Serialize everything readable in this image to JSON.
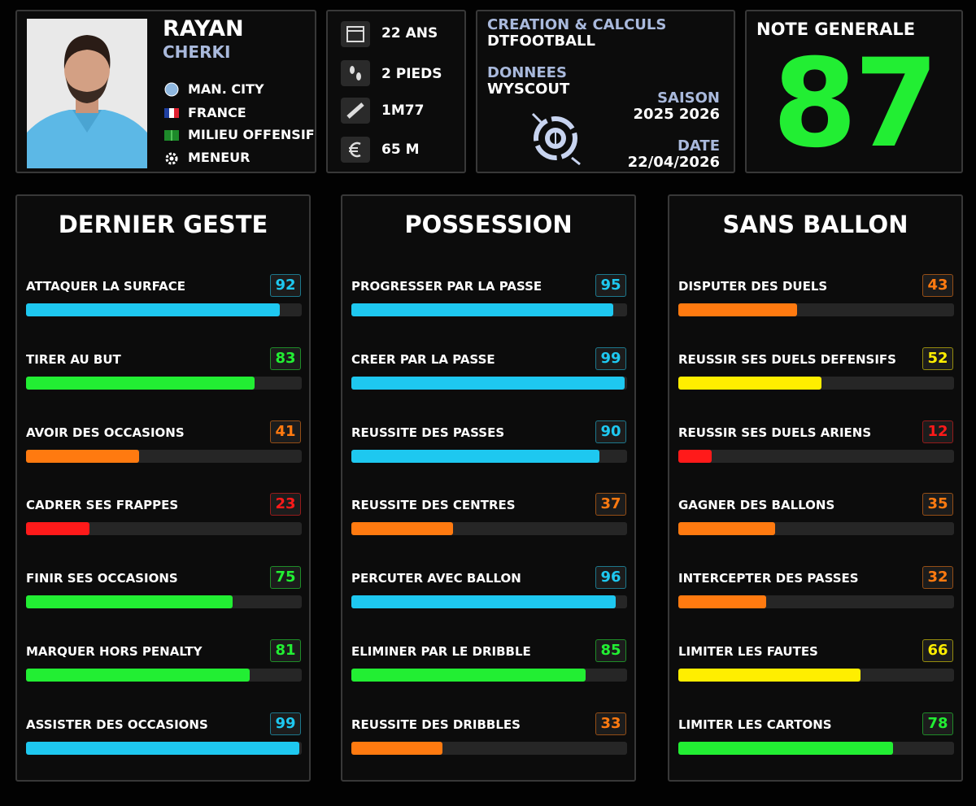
{
  "player": {
    "first_name": "RAYAN",
    "last_name": "CHERKI",
    "club": "MAN. CITY",
    "nation": "FRANCE",
    "position": "MILIEU OFFENSIF",
    "role": "MENEUR"
  },
  "profile": {
    "age": "22 ANS",
    "feet": "2 PIEDS",
    "height": "1M77",
    "value": "65 M"
  },
  "credits": {
    "creation_label": "CREATION & CALCULS",
    "creation": "DTFOOTBALL",
    "data_label": "DONNEES",
    "data_source": "WYSCOUT",
    "season_label": "SAISON",
    "season": "2025 2026",
    "date_label": "DATE",
    "date": "22/04/2026"
  },
  "overall": {
    "label": "NOTE GENERALE",
    "value": 87,
    "color": "#22ee33"
  },
  "panels": [
    {
      "title": "DERNIER GESTE",
      "stats": [
        {
          "label": "ATTAQUER LA SURFACE",
          "value": 92,
          "color": "#1ec8f0"
        },
        {
          "label": "TIRER AU BUT",
          "value": 83,
          "color": "#22ee33"
        },
        {
          "label": "AVOIR DES OCCASIONS",
          "value": 41,
          "color": "#ff7a10"
        },
        {
          "label": "CADRER SES FRAPPES",
          "value": 23,
          "color": "#ff1a1a"
        },
        {
          "label": "FINIR SES OCCASIONS",
          "value": 75,
          "color": "#22ee33"
        },
        {
          "label": "MARQUER HORS PENALTY",
          "value": 81,
          "color": "#22ee33"
        },
        {
          "label": "ASSISTER DES OCCASIONS",
          "value": 99,
          "color": "#1ec8f0"
        }
      ]
    },
    {
      "title": "POSSESSION",
      "stats": [
        {
          "label": "PROGRESSER PAR LA PASSE",
          "value": 95,
          "color": "#1ec8f0"
        },
        {
          "label": "CREER PAR LA PASSE",
          "value": 99,
          "color": "#1ec8f0"
        },
        {
          "label": "REUSSITE DES PASSES",
          "value": 90,
          "color": "#1ec8f0"
        },
        {
          "label": "REUSSITE DES CENTRES",
          "value": 37,
          "color": "#ff7a10"
        },
        {
          "label": "PERCUTER AVEC BALLON",
          "value": 96,
          "color": "#1ec8f0"
        },
        {
          "label": "ELIMINER PAR LE DRIBBLE",
          "value": 85,
          "color": "#22ee33"
        },
        {
          "label": "REUSSITE DES DRIBBLES",
          "value": 33,
          "color": "#ff7a10"
        }
      ]
    },
    {
      "title": "SANS BALLON",
      "stats": [
        {
          "label": "DISPUTER DES DUELS",
          "value": 43,
          "color": "#ff7a10"
        },
        {
          "label": "REUSSIR SES DUELS DEFENSIFS",
          "value": 52,
          "color": "#ffee00"
        },
        {
          "label": "REUSSIR SES DUELS ARIENS",
          "value": 12,
          "color": "#ff1a1a"
        },
        {
          "label": "GAGNER DES BALLONS",
          "value": 35,
          "color": "#ff7a10"
        },
        {
          "label": "INTERCEPTER DES PASSES",
          "value": 32,
          "color": "#ff7a10"
        },
        {
          "label": "LIMITER LES FAUTES",
          "value": 66,
          "color": "#ffee00"
        },
        {
          "label": "LIMITER LES CARTONS",
          "value": 78,
          "color": "#22ee33"
        }
      ]
    }
  ]
}
